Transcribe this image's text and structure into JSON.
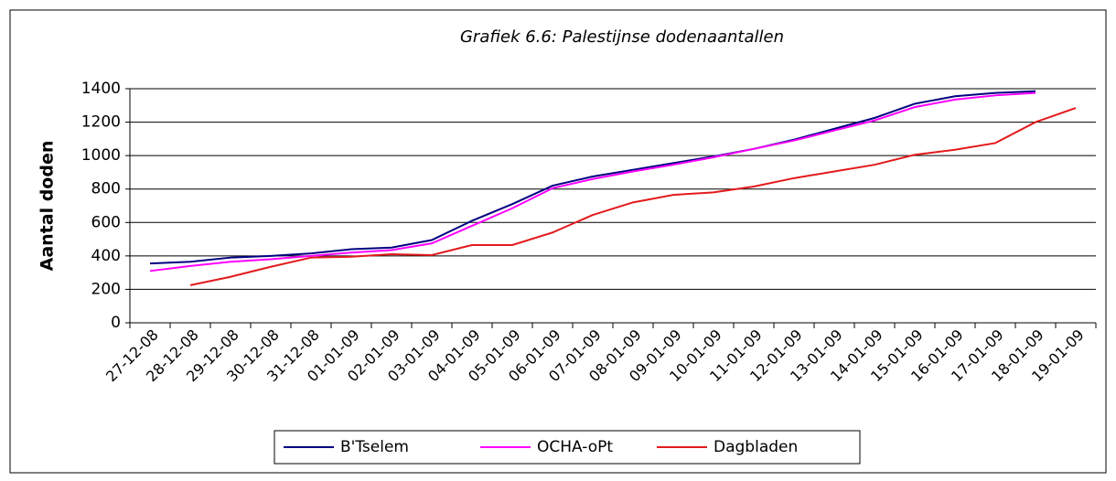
{
  "chart_data": {
    "type": "line",
    "title": "Grafiek 6.6: Palestijnse dodenaantallen",
    "y_label": "Aantal doden",
    "categories": [
      "27-12-08",
      "28-12-08",
      "29-12-08",
      "30-12-08",
      "31-12-08",
      "01-01-09",
      "02-01-09",
      "03-01-09",
      "04-01-09",
      "05-01-09",
      "06-01-09",
      "07-01-09",
      "08-01-09",
      "09-01-09",
      "10-01-09",
      "11-01-09",
      "12-01-09",
      "13-01-09",
      "14-01-09",
      "15-01-09",
      "16-01-09",
      "17-01-09",
      "18-01-09",
      "19-01-09"
    ],
    "series": [
      {
        "name": "B'Tselem",
        "color": "#000080",
        "values": [
          355,
          365,
          390,
          400,
          415,
          440,
          450,
          495,
          610,
          710,
          820,
          875,
          915,
          955,
          995,
          1040,
          1095,
          1160,
          1225,
          1310,
          1355,
          1375,
          1385,
          null
        ]
      },
      {
        "name": "OCHA-oPt",
        "color": "#ff00ff",
        "values": [
          310,
          340,
          365,
          380,
          400,
          420,
          435,
          475,
          580,
          685,
          805,
          860,
          905,
          945,
          990,
          1040,
          1090,
          1150,
          1210,
          1290,
          1335,
          1360,
          1375,
          null
        ]
      },
      {
        "name": "Dagbladen",
        "color": "#e31a1c",
        "values": [
          null,
          225,
          275,
          335,
          390,
          395,
          410,
          405,
          465,
          465,
          540,
          645,
          720,
          765,
          780,
          815,
          865,
          905,
          945,
          1005,
          1035,
          1075,
          1200,
          1285
        ]
      }
    ],
    "ylim": [
      0,
      1400
    ],
    "yticks": [
      0,
      200,
      400,
      600,
      800,
      1000,
      1200,
      1400
    ],
    "grid": true,
    "legend": "bottom"
  }
}
